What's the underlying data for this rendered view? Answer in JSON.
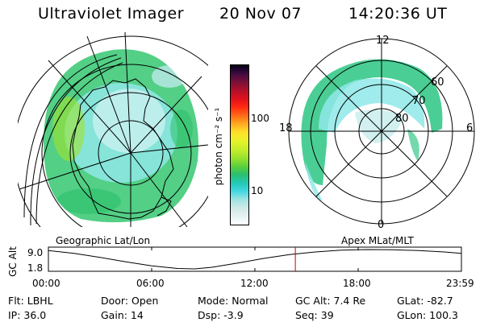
{
  "header": {
    "title": "Ultraviolet Imager",
    "date": "20 Nov 07",
    "time": "14:20:36 UT"
  },
  "colorbar": {
    "unit_label": "photon cm⁻² s⁻¹",
    "ticks": [
      "100",
      "10"
    ],
    "colors": [
      "#ffffff",
      "#e6f2f2",
      "#cfe8e8",
      "#9ee3e3",
      "#40d7e0",
      "#24c8b4",
      "#2bbf6a",
      "#5fd13a",
      "#9ee22f",
      "#c7ef2a",
      "#e8f22a",
      "#ffe12a",
      "#ffaa20",
      "#ff6a18",
      "#ff2a12",
      "#e0101c",
      "#b0102a",
      "#7a1038",
      "#400a40",
      "#000018"
    ],
    "scale": "log"
  },
  "polar_map": {
    "rings": [
      "60",
      "70",
      "80"
    ],
    "clock": {
      "top": "12",
      "bottom": "0",
      "left": "18",
      "right": "6"
    },
    "color_green": "#37c98a",
    "color_cyan": "#8fe7e7"
  },
  "altitude_panel": {
    "left_label": "Geographic Lat/Lon",
    "right_label": "Apex  MLat/MLT",
    "y_axis_label": "GC Alt",
    "y_ticks": [
      "9.0",
      "1.8"
    ],
    "x_ticks": [
      "00:00",
      "06:00",
      "12:00",
      "18:00",
      "23:59"
    ],
    "current_time_marker_color": "#cc0000",
    "current_time_hours": 14.34,
    "altitude_profile": [
      {
        "t": 0,
        "alt": 8.6
      },
      {
        "t": 1.5,
        "alt": 7.6
      },
      {
        "t": 3,
        "alt": 6.1
      },
      {
        "t": 4.5,
        "alt": 4.4
      },
      {
        "t": 6,
        "alt": 2.9
      },
      {
        "t": 7.5,
        "alt": 1.95
      },
      {
        "t": 8.5,
        "alt": 1.8
      },
      {
        "t": 9.5,
        "alt": 2.4
      },
      {
        "t": 11,
        "alt": 4.0
      },
      {
        "t": 12.5,
        "alt": 5.7
      },
      {
        "t": 14,
        "alt": 7.1
      },
      {
        "t": 15.5,
        "alt": 8.1
      },
      {
        "t": 17,
        "alt": 8.75
      },
      {
        "t": 18.5,
        "alt": 9.0
      },
      {
        "t": 20,
        "alt": 8.95
      },
      {
        "t": 21.5,
        "alt": 8.6
      },
      {
        "t": 23,
        "alt": 8.1
      },
      {
        "t": 23.98,
        "alt": 7.6
      }
    ]
  },
  "info": {
    "flt": "Flt: LBHL",
    "ip": "IP: 36.0",
    "door": "Door: Open",
    "gain": "Gain: 14",
    "mode": "Mode: Normal",
    "dsp": "Dsp:    -3.9",
    "gc_alt": "GC Alt: 7.4 Re",
    "seq": "Seq: 39",
    "glat": "GLat: -82.7",
    "glon": "GLon: 100.3"
  }
}
